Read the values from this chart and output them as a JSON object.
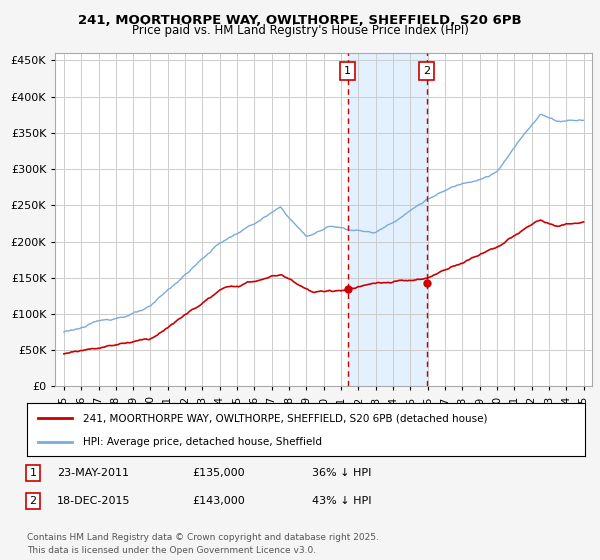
{
  "title_line1": "241, MOORTHORPE WAY, OWLTHORPE, SHEFFIELD, S20 6PB",
  "title_line2": "Price paid vs. HM Land Registry's House Price Index (HPI)",
  "ylabel_ticks": [
    "£0",
    "£50K",
    "£100K",
    "£150K",
    "£200K",
    "£250K",
    "£300K",
    "£350K",
    "£400K",
    "£450K"
  ],
  "ytick_values": [
    0,
    50000,
    100000,
    150000,
    200000,
    250000,
    300000,
    350000,
    400000,
    450000
  ],
  "ylim": [
    0,
    460000
  ],
  "xlim_start": 1994.5,
  "xlim_end": 2025.5,
  "legend_entries": [
    "241, MOORTHORPE WAY, OWLTHORPE, SHEFFIELD, S20 6PB (detached house)",
    "HPI: Average price, detached house, Sheffield"
  ],
  "legend_colors": [
    "#cc0000",
    "#7aabdb"
  ],
  "transaction1": {
    "date": "23-MAY-2011",
    "price": 135000,
    "label": "1",
    "year": 2011.38,
    "pct": "36% ↓ HPI"
  },
  "transaction2": {
    "date": "18-DEC-2015",
    "price": 143000,
    "label": "2",
    "year": 2015.96,
    "pct": "43% ↓ HPI"
  },
  "footnote": "Contains HM Land Registry data © Crown copyright and database right 2025.\nThis data is licensed under the Open Government Licence v3.0.",
  "hpi_color": "#7aabdb",
  "price_color": "#cc0000",
  "vline_color": "#cc0000",
  "shade_color": "#ddeeff",
  "background_color": "#f5f5f5",
  "plot_bg_color": "#ffffff",
  "grid_color": "#cccccc"
}
